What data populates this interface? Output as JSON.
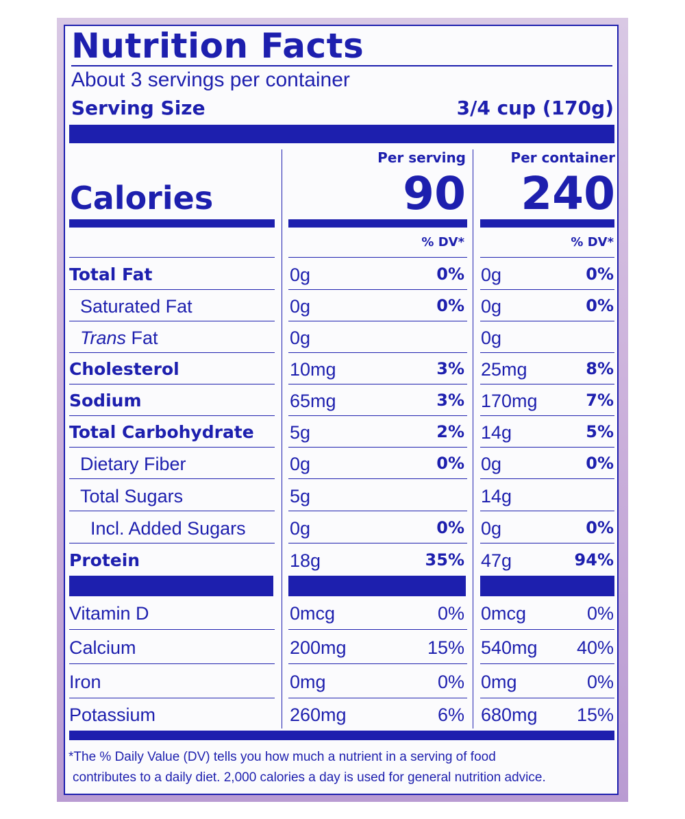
{
  "title": "Nutrition Facts",
  "servings_per_container": "About 3 servings per container",
  "serving_size": {
    "label": "Serving Size",
    "value": "3/4 cup (170g)"
  },
  "columns": {
    "per_serving": "Per serving",
    "per_container": "Per container"
  },
  "calories": {
    "label": "Calories",
    "per_serving": "90",
    "per_container": "240"
  },
  "dv_header": "% DV*",
  "nutrients": [
    {
      "name": "Total Fat",
      "serving_amt": "0g",
      "serving_dv": "0%",
      "container_amt": "0g",
      "container_dv": "0%"
    },
    {
      "name": "Saturated Fat",
      "serving_amt": "0g",
      "serving_dv": "0%",
      "container_amt": "0g",
      "container_dv": "0%"
    },
    {
      "name_italic": "Trans",
      "name_rest": " Fat",
      "serving_amt": "0g",
      "serving_dv": "",
      "container_amt": "0g",
      "container_dv": ""
    },
    {
      "name": "Cholesterol",
      "serving_amt": "10mg",
      "serving_dv": "3%",
      "container_amt": "25mg",
      "container_dv": "8%"
    },
    {
      "name": "Sodium",
      "serving_amt": "65mg",
      "serving_dv": "3%",
      "container_amt": "170mg",
      "container_dv": "7%"
    },
    {
      "name": "Total Carbohydrate",
      "serving_amt": "5g",
      "serving_dv": "2%",
      "container_amt": "14g",
      "container_dv": "5%"
    },
    {
      "name": "Dietary Fiber",
      "serving_amt": "0g",
      "serving_dv": "0%",
      "container_amt": "0g",
      "container_dv": "0%"
    },
    {
      "name": "Total Sugars",
      "serving_amt": "5g",
      "serving_dv": "",
      "container_amt": "14g",
      "container_dv": ""
    },
    {
      "name": "Incl. Added Sugars",
      "serving_amt": "0g",
      "serving_dv": "0%",
      "container_amt": "0g",
      "container_dv": "0%"
    },
    {
      "name": "Protein",
      "serving_amt": "18g",
      "serving_dv": "35%",
      "container_amt": "47g",
      "container_dv": "94%"
    }
  ],
  "vitamins": [
    {
      "name": "Vitamin D",
      "serving_amt": "0mcg",
      "serving_dv": "0%",
      "container_amt": "0mcg",
      "container_dv": "0%"
    },
    {
      "name": "Calcium",
      "serving_amt": "200mg",
      "serving_dv": "15%",
      "container_amt": "540mg",
      "container_dv": "40%"
    },
    {
      "name": "Iron",
      "serving_amt": "0mg",
      "serving_dv": "0%",
      "container_amt": "0mg",
      "container_dv": "0%"
    },
    {
      "name": "Potassium",
      "serving_amt": "260mg",
      "serving_dv": "6%",
      "container_amt": "680mg",
      "container_dv": "15%"
    }
  ],
  "footnote": {
    "line1": "*The % Daily Value (DV) tells you how much a nutrient in a serving of food",
    "line2": "contributes to a daily diet. 2,000 calories a day is used for general nutrition advice."
  },
  "colors": {
    "ink": "#1d1fae",
    "panel": "#fbfbfd",
    "border_tint": "#cdb3dc"
  }
}
